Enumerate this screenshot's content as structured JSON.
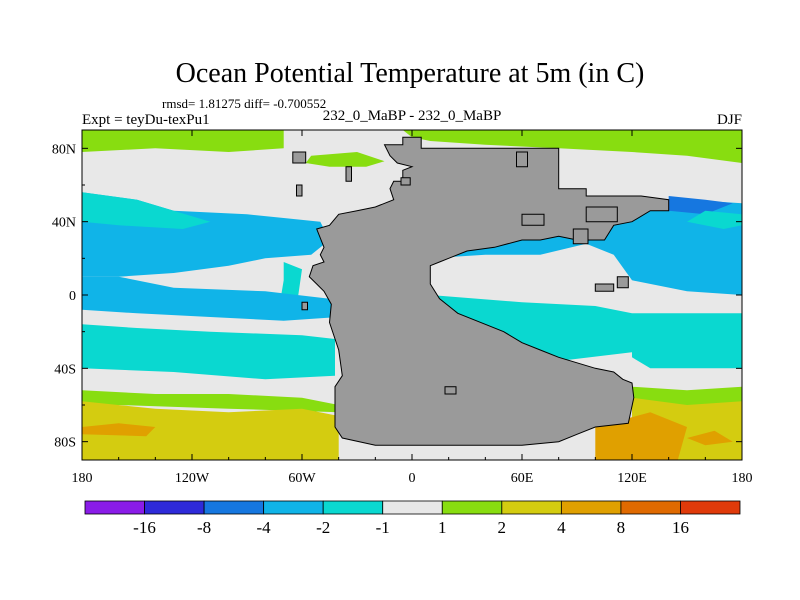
{
  "chart_data": {
    "type": "heatmap",
    "title": "Ocean Potential Temperature at 5m (in C)",
    "subtitle": "rmsd= 1.81275 diff= -0.700552",
    "left_label": "Expt = teyDu-texPu1",
    "center_label": "232_0_MaBP - 232_0_MaBP",
    "right_label": "DJF",
    "x_range": [
      -180,
      180
    ],
    "y_range": [
      -90,
      90
    ],
    "x_ticks": [
      {
        "value": -180,
        "label": "180"
      },
      {
        "value": -120,
        "label": "120W"
      },
      {
        "value": -60,
        "label": "60W"
      },
      {
        "value": 0,
        "label": "0"
      },
      {
        "value": 60,
        "label": "60E"
      },
      {
        "value": 120,
        "label": "120E"
      },
      {
        "value": 180,
        "label": "180"
      }
    ],
    "y_ticks": [
      {
        "value": 80,
        "label": "80N"
      },
      {
        "value": 40,
        "label": "40N"
      },
      {
        "value": 0,
        "label": "0"
      },
      {
        "value": -40,
        "label": "40S"
      },
      {
        "value": -80,
        "label": "80S"
      }
    ],
    "colorbar": {
      "colors": [
        "#8a1ce8",
        "#2e2ad9",
        "#1677e0",
        "#10b4e8",
        "#0ad8d0",
        "#e8e8e8",
        "#88dd10",
        "#d4cc10",
        "#e0a000",
        "#e06a00",
        "#e03a0a"
      ],
      "labels": [
        "-16",
        "-8",
        "-4",
        "-2",
        "-1",
        "1",
        "2",
        "4",
        "8",
        "16"
      ]
    },
    "land_color": "#9a9a9a",
    "regions": [
      {
        "level": 5,
        "polygon": [
          [
            -180,
            90
          ],
          [
            180,
            90
          ],
          [
            180,
            -90
          ],
          [
            -180,
            -90
          ]
        ]
      },
      {
        "level": 6,
        "polygon": [
          [
            -180,
            90
          ],
          [
            -70,
            90
          ],
          [
            -70,
            80
          ],
          [
            -100,
            78
          ],
          [
            -140,
            80
          ],
          [
            -180,
            78
          ]
        ]
      },
      {
        "level": 6,
        "polygon": [
          [
            -5,
            90
          ],
          [
            180,
            90
          ],
          [
            180,
            72
          ],
          [
            150,
            76
          ],
          [
            120,
            78
          ],
          [
            80,
            80
          ],
          [
            40,
            82
          ],
          [
            10,
            84
          ],
          [
            0,
            86
          ]
        ]
      },
      {
        "level": 6,
        "polygon": [
          [
            -55,
            76
          ],
          [
            -30,
            78
          ],
          [
            -15,
            73
          ],
          [
            -25,
            70
          ],
          [
            -45,
            70
          ],
          [
            -58,
            72
          ]
        ]
      },
      {
        "level": 3,
        "polygon": [
          [
            -180,
            56
          ],
          [
            -150,
            52
          ],
          [
            -130,
            46
          ],
          [
            -90,
            44
          ],
          [
            -70,
            42
          ],
          [
            -50,
            40
          ],
          [
            -45,
            30
          ],
          [
            -55,
            22
          ],
          [
            -80,
            20
          ],
          [
            -100,
            16
          ],
          [
            -130,
            12
          ],
          [
            -160,
            10
          ],
          [
            -180,
            10
          ]
        ]
      },
      {
        "level": 4,
        "polygon": [
          [
            -180,
            56
          ],
          [
            -150,
            52
          ],
          [
            -130,
            46
          ],
          [
            -110,
            40
          ],
          [
            -125,
            36
          ],
          [
            -160,
            38
          ],
          [
            -180,
            40
          ]
        ]
      },
      {
        "level": 4,
        "polygon": [
          [
            -70,
            18
          ],
          [
            -60,
            14
          ],
          [
            -62,
            0
          ],
          [
            -72,
            -4
          ],
          [
            -70,
            8
          ]
        ]
      },
      {
        "level": 3,
        "polygon": [
          [
            -180,
            10
          ],
          [
            -160,
            10
          ],
          [
            -130,
            4
          ],
          [
            -80,
            2
          ],
          [
            -45,
            -2
          ],
          [
            -40,
            -12
          ],
          [
            -70,
            -14
          ],
          [
            -110,
            -12
          ],
          [
            -150,
            -10
          ],
          [
            -180,
            -8
          ]
        ]
      },
      {
        "level": 3,
        "polygon": [
          [
            10,
            20
          ],
          [
            40,
            22
          ],
          [
            70,
            22
          ],
          [
            95,
            28
          ],
          [
            110,
            22
          ],
          [
            120,
            8
          ],
          [
            150,
            2
          ],
          [
            180,
            0
          ],
          [
            180,
            50
          ],
          [
            150,
            52
          ],
          [
            120,
            46
          ],
          [
            80,
            36
          ],
          [
            50,
            30
          ],
          [
            20,
            28
          ],
          [
            12,
            24
          ]
        ]
      },
      {
        "level": 2,
        "polygon": [
          [
            140,
            54
          ],
          [
            160,
            52
          ],
          [
            175,
            50
          ],
          [
            160,
            44
          ],
          [
            140,
            46
          ]
        ]
      },
      {
        "level": 4,
        "polygon": [
          [
            10,
            0
          ],
          [
            60,
            -4
          ],
          [
            100,
            -6
          ],
          [
            120,
            -10
          ],
          [
            180,
            -10
          ],
          [
            180,
            -28
          ],
          [
            130,
            -30
          ],
          [
            80,
            -36
          ],
          [
            50,
            -40
          ],
          [
            20,
            -40
          ],
          [
            8,
            -20
          ]
        ]
      },
      {
        "level": 4,
        "polygon": [
          [
            180,
            44
          ],
          [
            160,
            46
          ],
          [
            150,
            40
          ],
          [
            170,
            36
          ],
          [
            180,
            38
          ]
        ]
      },
      {
        "level": 4,
        "polygon": [
          [
            -180,
            -16
          ],
          [
            -150,
            -18
          ],
          [
            -110,
            -20
          ],
          [
            -60,
            -22
          ],
          [
            -42,
            -24
          ],
          [
            -42,
            -44
          ],
          [
            -80,
            -46
          ],
          [
            -130,
            -42
          ],
          [
            -180,
            -40
          ]
        ]
      },
      {
        "level": 4,
        "polygon": [
          [
            120,
            -12
          ],
          [
            150,
            -16
          ],
          [
            180,
            -16
          ],
          [
            180,
            -40
          ],
          [
            150,
            -40
          ],
          [
            130,
            -40
          ],
          [
            120,
            -34
          ]
        ]
      },
      {
        "level": 6,
        "polygon": [
          [
            -180,
            -52
          ],
          [
            -140,
            -54
          ],
          [
            -100,
            -54
          ],
          [
            -60,
            -56
          ],
          [
            -40,
            -60
          ],
          [
            -40,
            -64
          ],
          [
            -100,
            -62
          ],
          [
            -160,
            -60
          ],
          [
            -180,
            -60
          ]
        ]
      },
      {
        "level": 6,
        "polygon": [
          [
            120,
            -50
          ],
          [
            150,
            -52
          ],
          [
            180,
            -50
          ],
          [
            180,
            -62
          ],
          [
            150,
            -62
          ],
          [
            120,
            -60
          ]
        ]
      },
      {
        "level": 7,
        "polygon": [
          [
            -180,
            -58
          ],
          [
            -140,
            -62
          ],
          [
            -100,
            -64
          ],
          [
            -60,
            -62
          ],
          [
            -40,
            -66
          ],
          [
            -40,
            -90
          ],
          [
            -180,
            -90
          ]
        ]
      },
      {
        "level": 7,
        "polygon": [
          [
            120,
            -56
          ],
          [
            150,
            -60
          ],
          [
            180,
            -58
          ],
          [
            180,
            -90
          ],
          [
            120,
            -90
          ]
        ]
      },
      {
        "level": 8,
        "polygon": [
          [
            -180,
            -72
          ],
          [
            -160,
            -70
          ],
          [
            -140,
            -72
          ],
          [
            -145,
            -77
          ],
          [
            -180,
            -76
          ]
        ]
      },
      {
        "level": 8,
        "polygon": [
          [
            100,
            -72
          ],
          [
            130,
            -64
          ],
          [
            150,
            -72
          ],
          [
            145,
            -90
          ],
          [
            100,
            -90
          ]
        ]
      },
      {
        "level": 8,
        "polygon": [
          [
            150,
            -78
          ],
          [
            165,
            -74
          ],
          [
            175,
            -80
          ],
          [
            160,
            -82
          ]
        ]
      }
    ],
    "land": [
      [
        [
          -15,
          82
        ],
        [
          -5,
          82
        ],
        [
          -5,
          86
        ],
        [
          5,
          86
        ],
        [
          5,
          80
        ],
        [
          45,
          80
        ],
        [
          80,
          80
        ],
        [
          80,
          58
        ],
        [
          95,
          58
        ],
        [
          95,
          54
        ],
        [
          125,
          54
        ],
        [
          140,
          52
        ],
        [
          140,
          46
        ],
        [
          130,
          46
        ],
        [
          120,
          40
        ],
        [
          110,
          38
        ],
        [
          105,
          30
        ],
        [
          90,
          30
        ],
        [
          80,
          32
        ],
        [
          70,
          30
        ],
        [
          60,
          30
        ],
        [
          45,
          26
        ],
        [
          30,
          24
        ],
        [
          20,
          20
        ],
        [
          15,
          18
        ],
        [
          10,
          16
        ],
        [
          10,
          6
        ],
        [
          15,
          -2
        ],
        [
          20,
          -6
        ],
        [
          25,
          -10
        ],
        [
          40,
          -16
        ],
        [
          50,
          -20
        ],
        [
          60,
          -26
        ],
        [
          70,
          -30
        ],
        [
          80,
          -34
        ],
        [
          100,
          -40
        ],
        [
          110,
          -42
        ],
        [
          115,
          -46
        ],
        [
          120,
          -48
        ],
        [
          121,
          -56
        ],
        [
          118,
          -70
        ],
        [
          100,
          -72
        ],
        [
          90,
          -76
        ],
        [
          80,
          -80
        ],
        [
          60,
          -82
        ],
        [
          40,
          -82
        ],
        [
          0,
          -82
        ],
        [
          -20,
          -82
        ],
        [
          -38,
          -78
        ],
        [
          -42,
          -72
        ],
        [
          -42,
          -50
        ],
        [
          -38,
          -44
        ],
        [
          -40,
          -30
        ],
        [
          -45,
          -15
        ],
        [
          -44,
          -5
        ],
        [
          -48,
          2
        ],
        [
          -52,
          6
        ],
        [
          -56,
          10
        ],
        [
          -54,
          16
        ],
        [
          -48,
          18
        ],
        [
          -50,
          22
        ],
        [
          -48,
          26
        ],
        [
          -52,
          36
        ],
        [
          -45,
          38
        ],
        [
          -40,
          44
        ],
        [
          -30,
          46
        ],
        [
          -20,
          48
        ],
        [
          -10,
          52
        ],
        [
          -12,
          58
        ],
        [
          -10,
          62
        ],
        [
          -5,
          62
        ],
        [
          -5,
          68
        ],
        [
          0,
          70
        ],
        [
          -8,
          72
        ],
        [
          -12,
          76
        ]
      ],
      [
        [
          57,
          78
        ],
        [
          63,
          78
        ],
        [
          63,
          70
        ],
        [
          57,
          70
        ]
      ],
      [
        [
          -6,
          64
        ],
        [
          -1,
          64
        ],
        [
          -1,
          60
        ],
        [
          -6,
          60
        ]
      ],
      [
        [
          -36,
          70
        ],
        [
          -33,
          70
        ],
        [
          -33,
          62
        ],
        [
          -36,
          62
        ]
      ],
      [
        [
          -65,
          78
        ],
        [
          -58,
          78
        ],
        [
          -58,
          72
        ],
        [
          -65,
          72
        ]
      ],
      [
        [
          -60,
          -4
        ],
        [
          -57,
          -4
        ],
        [
          -57,
          -8
        ],
        [
          -60,
          -8
        ]
      ],
      [
        [
          60,
          44
        ],
        [
          72,
          44
        ],
        [
          72,
          38
        ],
        [
          60,
          38
        ]
      ],
      [
        [
          88,
          36
        ],
        [
          96,
          36
        ],
        [
          96,
          28
        ],
        [
          88,
          28
        ]
      ],
      [
        [
          95,
          48
        ],
        [
          112,
          48
        ],
        [
          112,
          40
        ],
        [
          95,
          40
        ]
      ],
      [
        [
          100,
          6
        ],
        [
          110,
          6
        ],
        [
          110,
          2
        ],
        [
          100,
          2
        ]
      ],
      [
        [
          112,
          10
        ],
        [
          118,
          10
        ],
        [
          118,
          4
        ],
        [
          112,
          4
        ]
      ],
      [
        [
          18,
          -50
        ],
        [
          24,
          -50
        ],
        [
          24,
          -54
        ],
        [
          18,
          -54
        ]
      ],
      [
        [
          -63,
          60
        ],
        [
          -60,
          60
        ],
        [
          -60,
          54
        ],
        [
          -63,
          54
        ]
      ]
    ]
  }
}
